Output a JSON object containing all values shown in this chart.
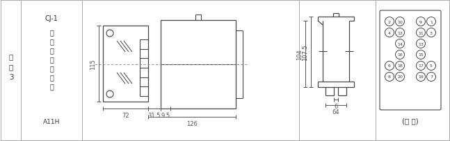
{
  "bg_color": "#ffffff",
  "bc": "#444444",
  "tc": "#333333",
  "dc": "#555555",
  "left_label": [
    "附",
    "图",
    "3"
  ],
  "col2_top": "CJ-1",
  "col2_mid": [
    "凸",
    "出",
    "式",
    "板",
    "后",
    "接",
    "线"
  ],
  "col2_bot": "A11H",
  "dim_115": "115",
  "dim_72": "72",
  "dim_31_5": "31.5",
  "dim_9_5": "9.5",
  "dim_126": "126",
  "dim_107_5": "107.5",
  "dim_104": "104",
  "dim_6": "6",
  "dim_64": "64",
  "back_view_label": "(背 视)",
  "pin_rows": [
    [
      "2",
      "10",
      "9",
      "1"
    ],
    [
      "4",
      "12",
      "11",
      "3"
    ],
    [
      "",
      "14",
      "13",
      ""
    ],
    [
      "",
      "16",
      "15",
      ""
    ],
    [
      "6",
      "18",
      "17",
      "5"
    ],
    [
      "8",
      "20",
      "19",
      "7"
    ]
  ]
}
